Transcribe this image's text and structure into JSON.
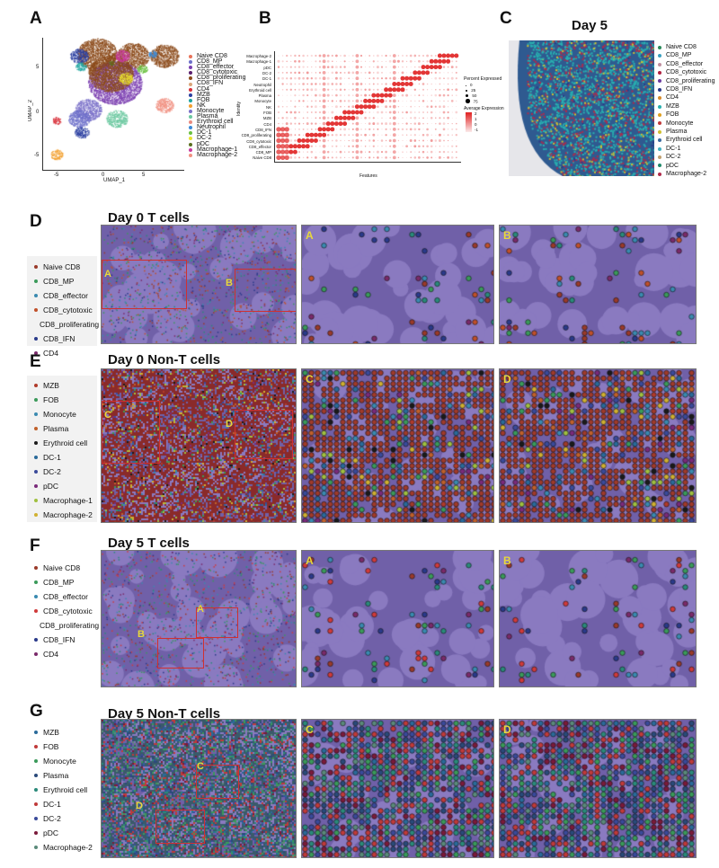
{
  "panels": {
    "a": "A",
    "b": "B",
    "c": "C",
    "d": "D",
    "e": "E",
    "f": "F",
    "g": "G"
  },
  "umap": {
    "xlabel": "UMAP_1",
    "ylabel": "UMAP_2",
    "xticks": [
      "-5",
      "0",
      "5"
    ],
    "yticks": [
      "5",
      "0",
      "-5"
    ],
    "legend": [
      {
        "label": "Naive CD8",
        "color": "#e8735a"
      },
      {
        "label": "CD8_MP",
        "color": "#6c6fc9"
      },
      {
        "label": "CD8_effector",
        "color": "#7b3fb0"
      },
      {
        "label": "CD8_cytotoxic",
        "color": "#5a1e6e"
      },
      {
        "label": "CD8_proliferating",
        "color": "#8b4a1a"
      },
      {
        "label": "CD8_IFN",
        "color": "#d9a57a"
      },
      {
        "label": "CD4",
        "color": "#d8303a"
      },
      {
        "label": "MZB",
        "color": "#2b3fa0"
      },
      {
        "label": "FOB",
        "color": "#1ea5a0"
      },
      {
        "label": "NK",
        "color": "#f2a030"
      },
      {
        "label": "Monocyte",
        "color": "#7a70c8"
      },
      {
        "label": "Plasma",
        "color": "#6cc8a0"
      },
      {
        "label": "Erythroid cell",
        "color": "#e88a80"
      },
      {
        "label": "Neutrophil",
        "color": "#3a8ad8"
      },
      {
        "label": "DC-1",
        "color": "#6ac040"
      },
      {
        "label": "DC-2",
        "color": "#e8e030"
      },
      {
        "label": "pDC",
        "color": "#5a7020"
      },
      {
        "label": "Macrophage-1",
        "color": "#c83aa0"
      },
      {
        "label": "Macrophage-2",
        "color": "#f09080"
      }
    ]
  },
  "dotplot": {
    "ylabel": "Identity",
    "xlabel": "Features",
    "identities": [
      "Macrophage-2",
      "Macrophage-1",
      "pDC",
      "DC-2",
      "DC-1",
      "Neutrophil",
      "Erythroid cell",
      "Plasma",
      "Monocyte",
      "NK",
      "FOB",
      "MZB",
      "CD4",
      "CD8_IFN",
      "CD8_proliferating",
      "CD8_cytotoxic",
      "CD8_effector",
      "CD8_MP",
      "Naive CD8"
    ],
    "pct_title": "Percent Expressed",
    "pct_ticks": [
      "0",
      "25",
      "50",
      "75"
    ],
    "avg_title": "Average Expression",
    "avg_ticks": [
      "2",
      "1",
      "0",
      "-1"
    ],
    "color_high": "#e02020",
    "color_low": "#fbeaea"
  },
  "day5_map": {
    "title": "Day 5",
    "legend": [
      {
        "label": "Naive CD8",
        "color": "#2a8a5a"
      },
      {
        "label": "CD8_MP",
        "color": "#3aa0c0"
      },
      {
        "label": "CD8_effector",
        "color": "#c090a0"
      },
      {
        "label": "CD8_cytotoxic",
        "color": "#b02040"
      },
      {
        "label": "CD8_proliferating",
        "color": "#6a3aa0"
      },
      {
        "label": "CD8_IFN",
        "color": "#2a3a8a"
      },
      {
        "label": "CD4",
        "color": "#d88a2a"
      },
      {
        "label": "MZB",
        "color": "#28b0b0"
      },
      {
        "label": "FOB",
        "color": "#e0a020"
      },
      {
        "label": "Monocyte",
        "color": "#c03a3a"
      },
      {
        "label": "Plasma",
        "color": "#d0c030"
      },
      {
        "label": "Erythroid cell",
        "color": "#3a6aa0"
      },
      {
        "label": "DC-1",
        "color": "#40b0c0"
      },
      {
        "label": "DC-2",
        "color": "#c0a070"
      },
      {
        "label": "pDC",
        "color": "#208a6a"
      },
      {
        "label": "Macrophage-2",
        "color": "#b02a4a"
      }
    ]
  },
  "d": {
    "title": "Day 0  T cells",
    "insets": [
      "A",
      "B"
    ],
    "legend": [
      {
        "label": "Naive CD8",
        "color": "#9a3a2a"
      },
      {
        "label": "CD8_MP",
        "color": "#3a9a5a"
      },
      {
        "label": "CD8_effector",
        "color": "#3a8ab0"
      },
      {
        "label": "CD8_cytotoxic",
        "color": "#c0502a"
      },
      {
        "label": "CD8_proliferating",
        "color": "#2a8a7a"
      },
      {
        "label": "CD8_IFN",
        "color": "#2a3a8a"
      },
      {
        "label": "CD4",
        "color": "#7a2a6a"
      }
    ]
  },
  "e": {
    "title": "Day 0  Non-T cells",
    "insets": [
      "C",
      "D"
    ],
    "legend": [
      {
        "label": "MZB",
        "color": "#b03a2a"
      },
      {
        "label": "FOB",
        "color": "#3a9a5a"
      },
      {
        "label": "Monocyte",
        "color": "#3a8ab0"
      },
      {
        "label": "Plasma",
        "color": "#c0602a"
      },
      {
        "label": "Erythroid cell",
        "color": "#1a1a1a"
      },
      {
        "label": "DC-1",
        "color": "#2a6a9a"
      },
      {
        "label": "DC-2",
        "color": "#3a4a9a"
      },
      {
        "label": "pDC",
        "color": "#7a2a7a"
      },
      {
        "label": "Macrophage-1",
        "color": "#a0c040"
      },
      {
        "label": "Macrophage-2",
        "color": "#d0b030"
      }
    ]
  },
  "f": {
    "title": "Day 5  T cells",
    "insets": [
      "A",
      "B"
    ],
    "legend": [
      {
        "label": "Naive CD8",
        "color": "#9a3a2a"
      },
      {
        "label": "CD8_MP",
        "color": "#3a9a5a"
      },
      {
        "label": "CD8_effector",
        "color": "#3a8ab0"
      },
      {
        "label": "CD8_cytotoxic",
        "color": "#d03a3a"
      },
      {
        "label": "CD8_proliferating",
        "color": "#2a8a7a"
      },
      {
        "label": "CD8_IFN",
        "color": "#2a3a8a"
      },
      {
        "label": "CD4",
        "color": "#7a2a6a"
      }
    ]
  },
  "g": {
    "title": "Day 5  Non-T cells",
    "insets": [
      "C",
      "D"
    ],
    "legend": [
      {
        "label": "MZB",
        "color": "#2a6a9a"
      },
      {
        "label": "FOB",
        "color": "#c03a3a"
      },
      {
        "label": "Monocyte",
        "color": "#3a9a5a"
      },
      {
        "label": "Plasma",
        "color": "#2a4a7a"
      },
      {
        "label": "Erythroid cell",
        "color": "#2a8a7a"
      },
      {
        "label": "DC-1",
        "color": "#c03a3a"
      },
      {
        "label": "DC-2",
        "color": "#3a4a9a"
      },
      {
        "label": "pDC",
        "color": "#7a1a3a"
      },
      {
        "label": "Macrophage-2",
        "color": "#5a8a7a"
      }
    ]
  }
}
